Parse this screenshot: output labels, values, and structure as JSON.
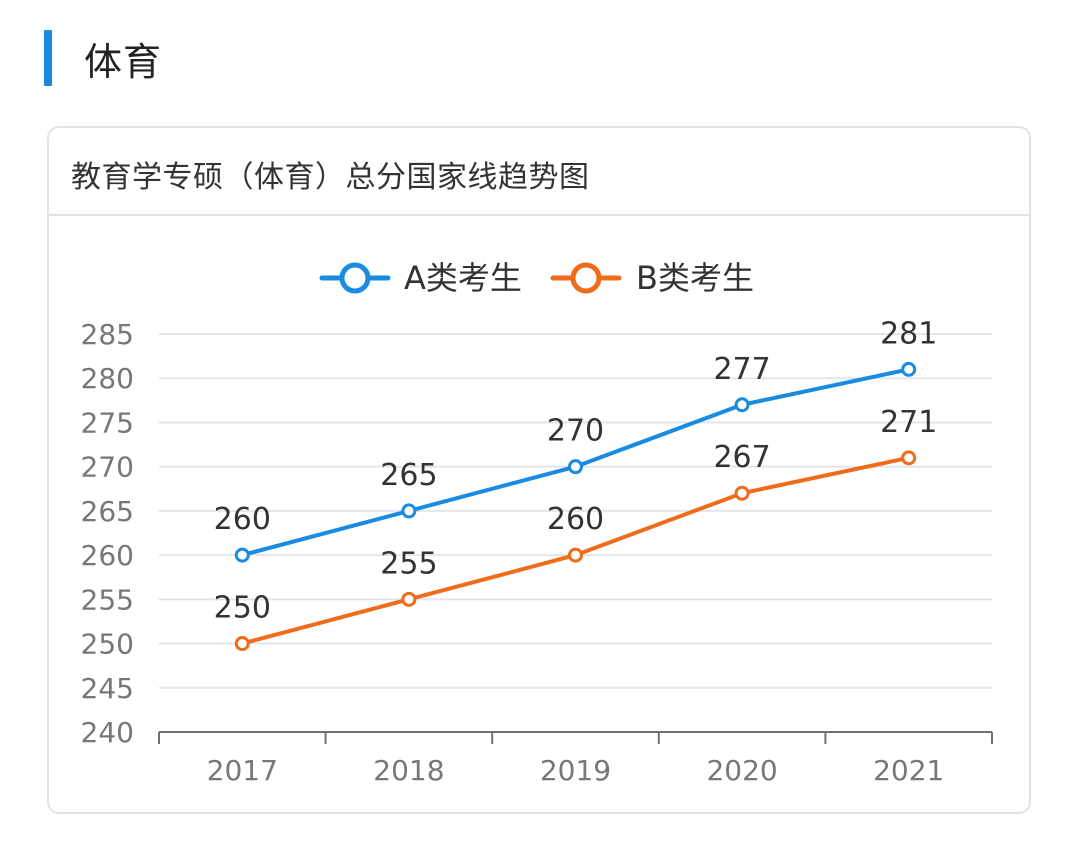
{
  "header": {
    "title": "体育",
    "accent_color": "#1a8be0"
  },
  "card": {
    "title": "教育学专硕（体育）总分国家线趋势图"
  },
  "chart_data": {
    "type": "line",
    "title": "教育学专硕（体育）总分国家线趋势图",
    "xlabel": "",
    "ylabel": "",
    "categories": [
      "2017",
      "2018",
      "2019",
      "2020",
      "2021"
    ],
    "ylim": [
      240,
      285
    ],
    "yticks": [
      240,
      245,
      250,
      255,
      260,
      265,
      270,
      275,
      280,
      285
    ],
    "grid": true,
    "legend_position": "top-center",
    "data_labels": true,
    "series": [
      {
        "name": "A类考生",
        "color": "#1a8be0",
        "values": [
          260,
          265,
          270,
          277,
          281
        ]
      },
      {
        "name": "B类考生",
        "color": "#ef6c1a",
        "values": [
          250,
          255,
          260,
          267,
          271
        ]
      }
    ]
  }
}
